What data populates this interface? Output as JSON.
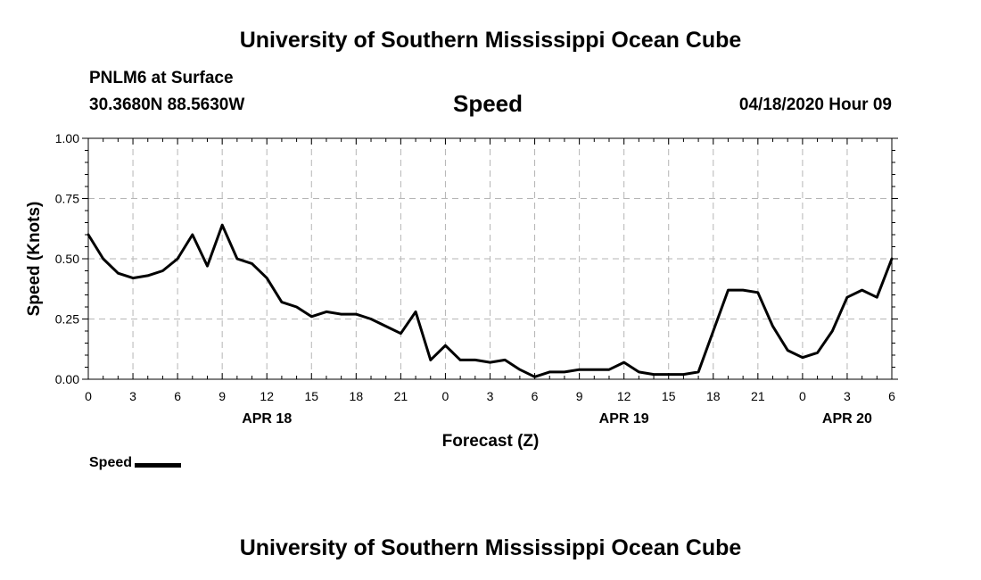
{
  "header": {
    "title": "University of Southern Mississippi Ocean Cube",
    "station": "PNLM6 at Surface",
    "coordinates": "30.3680N 88.5630W",
    "variable": "Speed",
    "valid_time": "04/18/2020 Hour 09"
  },
  "footer": {
    "title": "University of Southern Mississippi Ocean Cube"
  },
  "legend": {
    "label": "Speed"
  },
  "chart_data": {
    "type": "line",
    "title": "Speed",
    "xlabel": "Forecast (Z)",
    "ylabel": "Speed (Knots)",
    "xlim": [
      0,
      54
    ],
    "ylim": [
      0,
      1
    ],
    "grid": true,
    "legend_position": "bottom-left",
    "x_ticks": [
      0,
      3,
      6,
      9,
      12,
      15,
      18,
      21,
      24,
      27,
      30,
      33,
      36,
      39,
      42,
      45,
      48,
      51,
      54
    ],
    "x_tick_labels": [
      "0",
      "3",
      "6",
      "9",
      "12",
      "15",
      "18",
      "21",
      "0",
      "3",
      "6",
      "9",
      "12",
      "15",
      "18",
      "21",
      "0",
      "3",
      "6"
    ],
    "y_ticks": [
      0,
      0.25,
      0.5,
      0.75,
      1.0
    ],
    "y_tick_labels": [
      "0.00",
      "0.25",
      "0.50",
      "0.75",
      "1.00"
    ],
    "date_labels": [
      {
        "x": 12,
        "label": "APR 18"
      },
      {
        "x": 36,
        "label": "APR 19"
      },
      {
        "x": 51,
        "label": "APR 20"
      }
    ],
    "series": [
      {
        "name": "Speed",
        "x": [
          0,
          1,
          2,
          3,
          4,
          5,
          6,
          7,
          8,
          9,
          10,
          11,
          12,
          13,
          14,
          15,
          16,
          17,
          18,
          19,
          20,
          21,
          22,
          23,
          24,
          25,
          26,
          27,
          28,
          29,
          30,
          31,
          32,
          33,
          34,
          35,
          36,
          37,
          38,
          39,
          40,
          41,
          42,
          43,
          44,
          45,
          46,
          47,
          48,
          49,
          50,
          51,
          52,
          53,
          54
        ],
        "values": [
          0.6,
          0.5,
          0.44,
          0.42,
          0.43,
          0.45,
          0.5,
          0.6,
          0.47,
          0.64,
          0.5,
          0.48,
          0.42,
          0.32,
          0.3,
          0.26,
          0.28,
          0.27,
          0.27,
          0.25,
          0.22,
          0.19,
          0.28,
          0.08,
          0.14,
          0.08,
          0.08,
          0.07,
          0.08,
          0.04,
          0.01,
          0.03,
          0.03,
          0.04,
          0.04,
          0.04,
          0.07,
          0.03,
          0.02,
          0.02,
          0.02,
          0.03,
          0.2,
          0.37,
          0.37,
          0.36,
          0.22,
          0.12,
          0.09,
          0.11,
          0.2,
          0.34,
          0.37,
          0.34,
          0.5
        ]
      }
    ]
  }
}
